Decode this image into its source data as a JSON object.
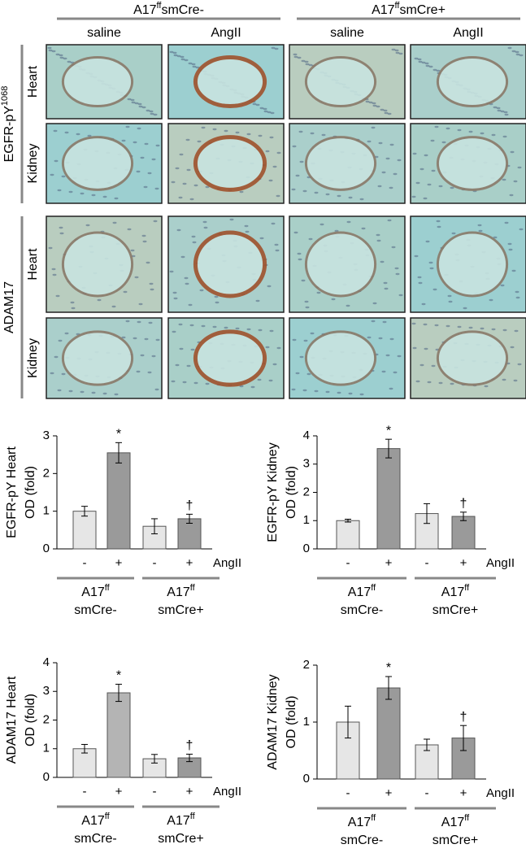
{
  "figure": {
    "groups": [
      {
        "base": "A17",
        "sup": "ff",
        "rest": "smCre-"
      },
      {
        "base": "A17",
        "sup": "ff",
        "rest": "smCre+"
      }
    ],
    "columns": [
      "saline",
      "AngII",
      "saline",
      "AngII"
    ],
    "row_groups": [
      {
        "base": "EGFR-pY",
        "sup": "1068"
      },
      {
        "base": "ADAM17"
      }
    ],
    "rows": [
      "Heart",
      "Kidney",
      "Heart",
      "Kidney"
    ]
  },
  "chart_data": [
    {
      "type": "bar",
      "ylabel": [
        "EGFR-pY Heart",
        "OD (fold)"
      ],
      "categories": [
        "-",
        "+",
        "-",
        "+"
      ],
      "treatment_label": "AngII",
      "groups": [
        {
          "base": "A17",
          "sup": "ff",
          "rest": "smCre-"
        },
        {
          "base": "A17",
          "sup": "ff",
          "rest": "smCre+"
        }
      ],
      "values": [
        1.0,
        2.55,
        0.6,
        0.8
      ],
      "errors": [
        0.13,
        0.27,
        0.2,
        0.12
      ],
      "markers": [
        null,
        "*",
        null,
        "†"
      ],
      "colors": [
        "#e6e6e6",
        "#9a9a9a",
        "#e6e6e6",
        "#9a9a9a"
      ],
      "ylim": [
        0,
        3
      ],
      "yticks": [
        0,
        1,
        2,
        3
      ]
    },
    {
      "type": "bar",
      "ylabel": [
        "EGFR-pY Kidney",
        "OD (fold)"
      ],
      "categories": [
        "-",
        "+",
        "-",
        "+"
      ],
      "treatment_label": "AngII",
      "groups": [
        {
          "base": "A17",
          "sup": "ff",
          "rest": "smCre-"
        },
        {
          "base": "A17",
          "sup": "ff",
          "rest": "smCre+"
        }
      ],
      "values": [
        1.0,
        3.55,
        1.25,
        1.15
      ],
      "errors": [
        0.05,
        0.33,
        0.35,
        0.15
      ],
      "markers": [
        null,
        "*",
        null,
        "†"
      ],
      "colors": [
        "#e6e6e6",
        "#9a9a9a",
        "#e6e6e6",
        "#9a9a9a"
      ],
      "ylim": [
        0,
        4
      ],
      "yticks": [
        0,
        1,
        2,
        3,
        4
      ]
    },
    {
      "type": "bar",
      "ylabel": [
        "ADAM17 Heart",
        "OD (fold)"
      ],
      "categories": [
        "-",
        "+",
        "-",
        "+"
      ],
      "treatment_label": "AngII",
      "groups": [
        {
          "base": "A17",
          "sup": "ff",
          "rest": "smCre-"
        },
        {
          "base": "A17",
          "sup": "ff",
          "rest": "smCre+"
        }
      ],
      "values": [
        1.0,
        2.95,
        0.65,
        0.68
      ],
      "errors": [
        0.15,
        0.3,
        0.15,
        0.13
      ],
      "markers": [
        null,
        "*",
        null,
        "†"
      ],
      "colors": [
        "#e6e6e6",
        "#b4b4b4",
        "#e6e6e6",
        "#9a9a9a"
      ],
      "ylim": [
        0,
        4
      ],
      "yticks": [
        0,
        1,
        2,
        3,
        4
      ]
    },
    {
      "type": "bar",
      "ylabel": [
        "ADAM17 Kidney",
        "OD (fold)"
      ],
      "categories": [
        "-",
        "+",
        "-",
        "+"
      ],
      "treatment_label": "AngII",
      "groups": [
        {
          "base": "A17",
          "sup": "ff",
          "rest": "smCre-"
        },
        {
          "base": "A17",
          "sup": "ff",
          "rest": "smCre+"
        }
      ],
      "values": [
        1.0,
        1.6,
        0.6,
        0.72
      ],
      "errors": [
        0.28,
        0.2,
        0.1,
        0.22
      ],
      "markers": [
        null,
        "*",
        null,
        "†"
      ],
      "colors": [
        "#e6e6e6",
        "#9a9a9a",
        "#e6e6e6",
        "#9a9a9a"
      ],
      "ylim": [
        0,
        2
      ],
      "yticks": [
        0,
        1,
        2
      ]
    }
  ]
}
